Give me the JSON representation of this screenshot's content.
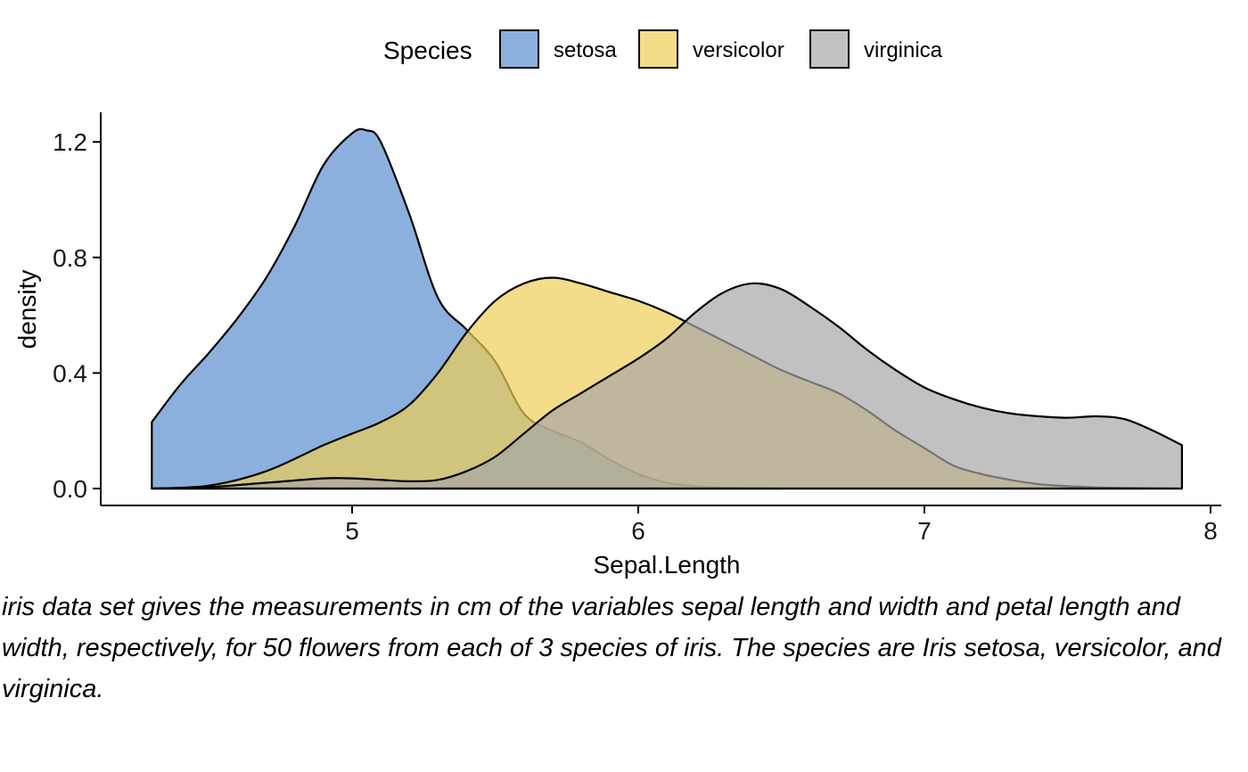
{
  "chart_data": {
    "type": "area",
    "subtype": "density",
    "xlabel": "Sepal.Length",
    "ylabel": "density",
    "xlim": [
      4.3,
      7.9
    ],
    "ylim": [
      0,
      1.2
    ],
    "x_ticks": [
      "5",
      "6",
      "7",
      "8"
    ],
    "y_ticks": [
      "0.0",
      "0.4",
      "0.8",
      "1.2"
    ],
    "x_tick_values": [
      5,
      6,
      7,
      8
    ],
    "y_tick_values": [
      0.0,
      0.4,
      0.8,
      1.2
    ],
    "grid": false,
    "legend": {
      "title": "Species",
      "position": "top",
      "items": [
        "setosa",
        "versicolor",
        "virginica"
      ]
    },
    "fill_opacity": 0.7,
    "series": [
      {
        "name": "setosa",
        "color": "#5A8ECF",
        "x": [
          4.3,
          4.4,
          4.5,
          4.6,
          4.7,
          4.8,
          4.9,
          5.0,
          5.05,
          5.1,
          5.2,
          5.3,
          5.4,
          5.5,
          5.6,
          5.7,
          5.8,
          5.9,
          6.0,
          6.1,
          6.2,
          6.3,
          6.4,
          6.5
        ],
        "y": [
          0.23,
          0.36,
          0.47,
          0.59,
          0.73,
          0.91,
          1.12,
          1.23,
          1.24,
          1.2,
          0.95,
          0.66,
          0.55,
          0.44,
          0.26,
          0.2,
          0.16,
          0.1,
          0.05,
          0.02,
          0.008,
          0.003,
          0.001,
          0.0
        ]
      },
      {
        "name": "versicolor",
        "color": "#EFCF56",
        "x": [
          4.3,
          4.5,
          4.7,
          4.9,
          5.0,
          5.1,
          5.2,
          5.3,
          5.4,
          5.5,
          5.6,
          5.7,
          5.8,
          5.9,
          6.0,
          6.1,
          6.2,
          6.3,
          6.4,
          6.5,
          6.6,
          6.7,
          6.8,
          6.9,
          7.0,
          7.1,
          7.2,
          7.3,
          7.4,
          7.5,
          7.6,
          7.7,
          7.8,
          7.9
        ],
        "y": [
          0.0,
          0.01,
          0.06,
          0.15,
          0.19,
          0.23,
          0.29,
          0.4,
          0.54,
          0.65,
          0.71,
          0.73,
          0.71,
          0.68,
          0.65,
          0.61,
          0.56,
          0.51,
          0.46,
          0.41,
          0.37,
          0.33,
          0.27,
          0.2,
          0.14,
          0.08,
          0.05,
          0.03,
          0.015,
          0.008,
          0.004,
          0.002,
          0.001,
          0.0
        ]
      },
      {
        "name": "virginica",
        "color": "#A7A7A7",
        "x": [
          4.3,
          4.5,
          4.7,
          4.9,
          5.0,
          5.1,
          5.2,
          5.3,
          5.4,
          5.5,
          5.6,
          5.7,
          5.8,
          5.9,
          6.0,
          6.1,
          6.2,
          6.3,
          6.4,
          6.5,
          6.6,
          6.7,
          6.8,
          6.9,
          7.0,
          7.1,
          7.2,
          7.3,
          7.4,
          7.5,
          7.6,
          7.7,
          7.8,
          7.9
        ],
        "y": [
          0.0,
          0.005,
          0.02,
          0.035,
          0.035,
          0.03,
          0.025,
          0.03,
          0.06,
          0.11,
          0.19,
          0.27,
          0.33,
          0.39,
          0.45,
          0.52,
          0.61,
          0.68,
          0.71,
          0.69,
          0.63,
          0.56,
          0.48,
          0.41,
          0.35,
          0.31,
          0.28,
          0.26,
          0.25,
          0.245,
          0.25,
          0.24,
          0.2,
          0.15
        ]
      }
    ]
  },
  "caption": "iris data set gives the measurements in cm of the variables sepal length and width and petal length and width, respectively, for 50 flowers from each of 3 species of iris. The species are Iris setosa, versicolor, and virginica."
}
